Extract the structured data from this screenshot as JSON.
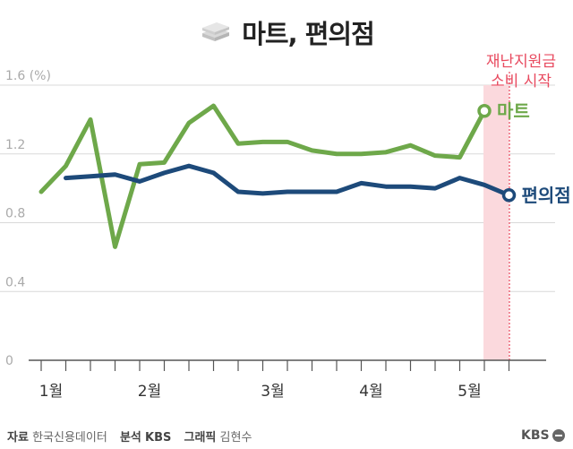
{
  "title": "마트, 편의점",
  "colors": {
    "mart": "#6ea84a",
    "convenience": "#1d4a7a",
    "grid": "#d9d9d9",
    "axis": "#555555",
    "annotation": "#e84a5f",
    "highlight": "#fbd9dd",
    "tick_label": "#aaaaaa"
  },
  "chart_data": {
    "type": "line",
    "y_unit_label": "1.6 (%)",
    "ylim": [
      0,
      1.6
    ],
    "y_ticks": [
      {
        "value": 0,
        "label": "0"
      },
      {
        "value": 0.4,
        "label": "0.4"
      },
      {
        "value": 0.8,
        "label": "0.8"
      },
      {
        "value": 1.2,
        "label": "1.2"
      },
      {
        "value": 1.6,
        "label": "1.6 (%)"
      }
    ],
    "x_count": 20,
    "x_month_labels": [
      {
        "index": 0,
        "label": "1월"
      },
      {
        "index": 4,
        "label": "2월"
      },
      {
        "index": 9,
        "label": "3월"
      },
      {
        "index": 13,
        "label": "4월"
      },
      {
        "index": 17,
        "label": "5월"
      }
    ],
    "grid": true,
    "series": [
      {
        "name": "마트",
        "color_key": "mart",
        "values": [
          0.98,
          1.13,
          1.4,
          0.66,
          1.14,
          1.15,
          1.38,
          1.48,
          1.26,
          1.27,
          1.27,
          1.22,
          1.2,
          1.2,
          1.21,
          1.25,
          1.19,
          1.18,
          1.45
        ]
      },
      {
        "name": "편의점",
        "color_key": "convenience",
        "start_index": 1,
        "values": [
          1.06,
          1.07,
          1.08,
          1.04,
          1.09,
          1.13,
          1.09,
          0.98,
          0.97,
          0.98,
          0.98,
          0.98,
          1.03,
          1.01,
          1.01,
          1.0,
          1.06,
          1.02,
          0.96
        ]
      }
    ],
    "highlight": {
      "from_index": 18,
      "to_index": 19,
      "label_line1": "재난지원금",
      "label_line2": "소비 시작"
    }
  },
  "footer": {
    "source_label": "자료",
    "source_value": "한국신용데이터",
    "analysis_label": "분석",
    "analysis_value": "KBS",
    "graphic_label": "그래픽",
    "graphic_value": "김현수"
  },
  "logo_text": "KBS"
}
